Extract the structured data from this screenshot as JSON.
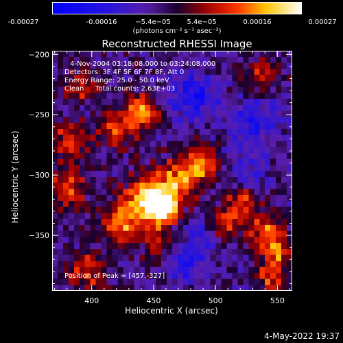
{
  "chart_data": {
    "type": "heatmap",
    "title": "Reconstructed RHESSI Image",
    "xlabel": "Heliocentric X (arcsec)",
    "ylabel": "Heliocentric Y (arcsec)",
    "xlim": [
      368,
      562
    ],
    "ylim": [
      -396,
      -197
    ],
    "x_ticks": [
      400,
      450,
      500,
      550
    ],
    "y_ticks": [
      -200,
      -250,
      -300,
      -350
    ],
    "colorbar": {
      "colormap": "rhessi-blue-purple-red-yellow-white",
      "range": [
        -0.00027,
        0.00027
      ],
      "tick_labels": [
        "-0.00027",
        "-0.00016",
        "−5.4e−05",
        "5.4e−05",
        "0.00016",
        "0.00027"
      ],
      "unit_label": "(photons cm⁻² s⁻¹ asec⁻²)"
    },
    "peak": [
      457,
      -327
    ],
    "grid_size": [
      44,
      40
    ],
    "hot_regions": [
      {
        "x": 458,
        "y": -327,
        "amp": 1.0,
        "sigma": 8
      },
      {
        "x": 445,
        "y": -320,
        "amp": 0.75,
        "sigma": 13
      },
      {
        "x": 425,
        "y": -340,
        "amp": 0.55,
        "sigma": 12
      },
      {
        "x": 470,
        "y": -305,
        "amp": 0.6,
        "sigma": 12
      },
      {
        "x": 488,
        "y": -290,
        "amp": 0.6,
        "sigma": 10
      },
      {
        "x": 440,
        "y": -248,
        "amp": 0.7,
        "sigma": 10
      },
      {
        "x": 420,
        "y": -265,
        "amp": 0.45,
        "sigma": 10
      },
      {
        "x": 383,
        "y": -270,
        "amp": 0.55,
        "sigma": 10
      },
      {
        "x": 380,
        "y": -310,
        "amp": 0.45,
        "sigma": 12
      },
      {
        "x": 392,
        "y": -225,
        "amp": 0.45,
        "sigma": 10
      },
      {
        "x": 505,
        "y": -340,
        "amp": 0.5,
        "sigma": 10
      },
      {
        "x": 520,
        "y": -320,
        "amp": 0.45,
        "sigma": 9
      },
      {
        "x": 540,
        "y": -345,
        "amp": 0.55,
        "sigma": 9
      },
      {
        "x": 548,
        "y": -365,
        "amp": 0.55,
        "sigma": 9
      },
      {
        "x": 545,
        "y": -385,
        "amp": 0.45,
        "sigma": 8
      },
      {
        "x": 535,
        "y": -215,
        "amp": 0.4,
        "sigma": 9
      },
      {
        "x": 395,
        "y": -380,
        "amp": 0.45,
        "sigma": 12
      },
      {
        "x": 455,
        "y": -355,
        "amp": 0.35,
        "sigma": 10
      }
    ],
    "cold_regions": [
      {
        "x": 482,
        "y": -235,
        "amp": 0.55,
        "sigma": 14
      },
      {
        "x": 530,
        "y": -260,
        "amp": 0.45,
        "sigma": 14
      },
      {
        "x": 490,
        "y": -348,
        "amp": 0.45,
        "sigma": 11
      },
      {
        "x": 475,
        "y": -375,
        "amp": 0.5,
        "sigma": 10
      },
      {
        "x": 525,
        "y": -300,
        "amp": 0.3,
        "sigma": 10
      }
    ]
  },
  "info": {
    "time_range": "4-Nov-2004 03:18:08.000 to 03:24:08.000",
    "detectors": "Detectors: 3F 4F 5F 6F 7F 8F, Att 0",
    "energy_range": "Energy Range: 25.0 - 50.0 keV",
    "clean": "Clean",
    "total_counts": "Total counts: 2.63E+03",
    "peak_position": "Position of Peak = [457,-327]"
  },
  "timestamp": "4-May-2022 19:37",
  "colors": {
    "background": "#000000",
    "axis": "#ffffff"
  }
}
